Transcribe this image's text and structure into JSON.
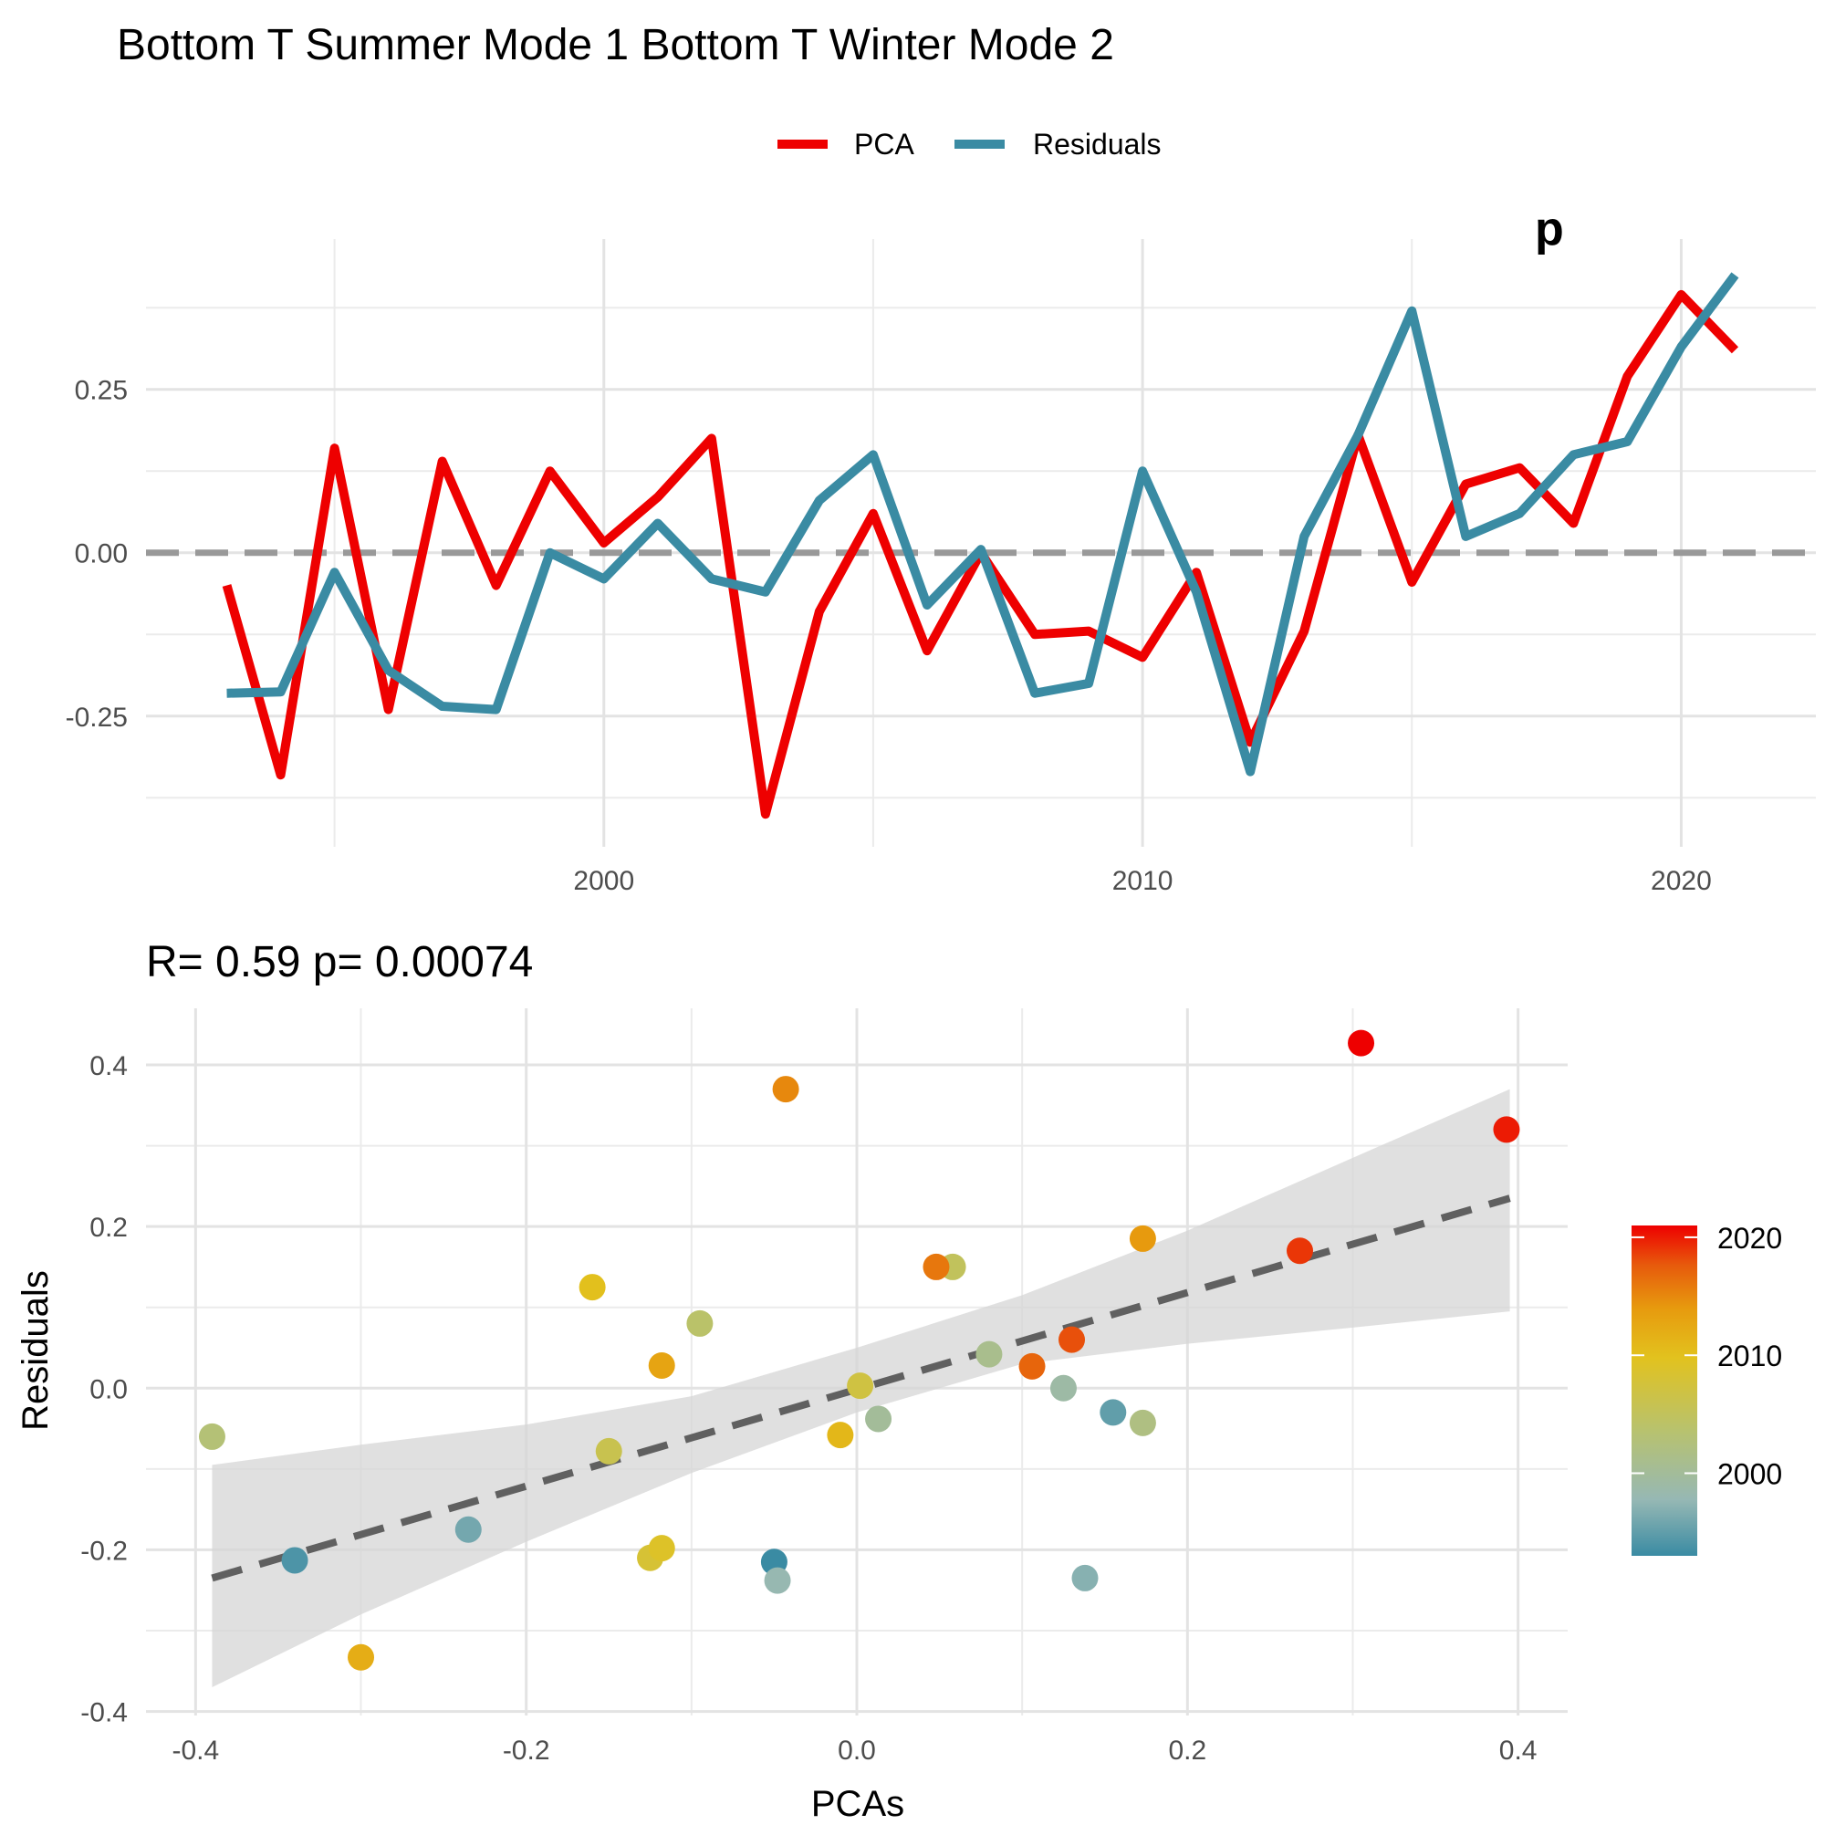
{
  "title": "Bottom T Summer Mode 1 Bottom T Winter Mode 2",
  "legend": {
    "items": [
      {
        "label": "PCA",
        "color": "#EE0000"
      },
      {
        "label": "Residuals",
        "color": "#3A8BA3"
      }
    ]
  },
  "chart_data": [
    {
      "type": "line",
      "xlabel": "",
      "ylabel": "",
      "xlim": [
        1991.5,
        2022.5
      ],
      "ylim": [
        -0.45,
        0.48
      ],
      "x_ticks": [
        2000,
        2010,
        2020
      ],
      "x_tick_labels": [
        "2000",
        "2010",
        "2020"
      ],
      "y_ticks": [
        -0.25,
        0.0,
        0.25
      ],
      "y_tick_labels": [
        "-0.25",
        "0.00",
        "0.25"
      ],
      "grid": true,
      "legend_position": "top",
      "reference_line": {
        "y": 0,
        "style": "dashed",
        "color": "#999999"
      },
      "annotation_fragment": "p",
      "x": [
        1993,
        1994,
        1995,
        1996,
        1997,
        1998,
        1999,
        2000,
        2001,
        2002,
        2003,
        2004,
        2005,
        2006,
        2007,
        2008,
        2009,
        2010,
        2011,
        2012,
        2013,
        2014,
        2015,
        2016,
        2017,
        2018,
        2019,
        2020,
        2021
      ],
      "series": [
        {
          "name": "PCA",
          "color": "#EE0000",
          "values": [
            -0.05,
            -0.34,
            0.16,
            -0.24,
            0.14,
            -0.05,
            0.125,
            0.015,
            0.085,
            0.175,
            -0.4,
            -0.09,
            0.06,
            -0.15,
            0.0,
            -0.125,
            -0.12,
            -0.16,
            -0.03,
            -0.29,
            -0.12,
            0.18,
            -0.045,
            0.105,
            0.13,
            0.045,
            0.27,
            0.395,
            0.31
          ]
        },
        {
          "name": "Residuals",
          "color": "#3A8BA3",
          "values": [
            -0.215,
            -0.213,
            -0.03,
            -0.18,
            -0.235,
            -0.24,
            0.0,
            -0.04,
            0.045,
            -0.04,
            -0.06,
            0.08,
            0.15,
            -0.08,
            0.005,
            -0.215,
            -0.2,
            0.125,
            -0.06,
            -0.335,
            0.025,
            0.18,
            0.37,
            0.025,
            0.06,
            0.15,
            0.17,
            0.315,
            0.425
          ]
        }
      ]
    },
    {
      "type": "scatter",
      "subtitle": "R= 0.59  p= 0.00074",
      "xlabel": "PCAs",
      "ylabel": "Residuals",
      "xlim": [
        -0.43,
        0.43
      ],
      "ylim": [
        -0.405,
        0.47
      ],
      "x_ticks": [
        -0.4,
        -0.2,
        0.0,
        0.2,
        0.4
      ],
      "x_tick_labels": [
        "-0.4",
        "-0.2",
        "0.0",
        "0.2",
        "0.4"
      ],
      "y_ticks": [
        -0.4,
        -0.2,
        0.0,
        0.2,
        0.4
      ],
      "y_tick_labels": [
        "-0.4",
        "-0.2",
        "0.0",
        "0.2",
        "0.4"
      ],
      "grid": true,
      "trend_line": {
        "x": [
          -0.39,
          0.395
        ],
        "y": [
          -0.235,
          0.235
        ],
        "style": "dashed",
        "color": "#606060"
      },
      "confidence_band": {
        "x": [
          -0.39,
          -0.3,
          -0.2,
          -0.1,
          0.0,
          0.1,
          0.2,
          0.3,
          0.395
        ],
        "lower": [
          -0.37,
          -0.28,
          -0.19,
          -0.105,
          -0.03,
          0.03,
          0.055,
          0.075,
          0.095
        ],
        "upper": [
          -0.095,
          -0.07,
          -0.045,
          -0.01,
          0.05,
          0.115,
          0.195,
          0.285,
          0.37
        ]
      },
      "colorbar": {
        "min": 1993,
        "max": 2021,
        "ticks": [
          2000,
          2010,
          2020
        ],
        "tick_labels": [
          "2000",
          "2010",
          "2020"
        ],
        "stops": [
          "#3A8BA3",
          "#96B8B4",
          "#B8C26E",
          "#E2C21E",
          "#E79A0E",
          "#E75A0C",
          "#EE0000"
        ]
      },
      "points": [
        {
          "x": -0.05,
          "y": -0.215,
          "year": 1993
        },
        {
          "x": -0.34,
          "y": -0.213,
          "year": 1994
        },
        {
          "x": 0.155,
          "y": -0.03,
          "year": 1995
        },
        {
          "x": -0.235,
          "y": -0.175,
          "year": 1996
        },
        {
          "x": 0.138,
          "y": -0.235,
          "year": 1997
        },
        {
          "x": -0.048,
          "y": -0.238,
          "year": 1998
        },
        {
          "x": 0.125,
          "y": 0.0,
          "year": 1999
        },
        {
          "x": 0.013,
          "y": -0.038,
          "year": 2000
        },
        {
          "x": 0.08,
          "y": 0.042,
          "year": 2001
        },
        {
          "x": 0.173,
          "y": -0.043,
          "year": 2002
        },
        {
          "x": -0.39,
          "y": -0.06,
          "year": 2003
        },
        {
          "x": -0.095,
          "y": 0.08,
          "year": 2004
        },
        {
          "x": 0.058,
          "y": 0.15,
          "year": 2005
        },
        {
          "x": -0.15,
          "y": -0.078,
          "year": 2006
        },
        {
          "x": 0.002,
          "y": 0.003,
          "year": 2007
        },
        {
          "x": -0.125,
          "y": -0.21,
          "year": 2008
        },
        {
          "x": -0.118,
          "y": -0.198,
          "year": 2009
        },
        {
          "x": -0.16,
          "y": 0.125,
          "year": 2010
        },
        {
          "x": -0.01,
          "y": -0.058,
          "year": 2011
        },
        {
          "x": -0.3,
          "y": -0.333,
          "year": 2012
        },
        {
          "x": -0.118,
          "y": 0.028,
          "year": 2013
        },
        {
          "x": 0.173,
          "y": 0.185,
          "year": 2014
        },
        {
          "x": -0.043,
          "y": 0.37,
          "year": 2015
        },
        {
          "x": 0.048,
          "y": 0.15,
          "year": 2016
        },
        {
          "x": 0.106,
          "y": 0.027,
          "year": 2017
        },
        {
          "x": 0.13,
          "y": 0.06,
          "year": 2018
        },
        {
          "x": 0.268,
          "y": 0.17,
          "year": 2019
        },
        {
          "x": 0.393,
          "y": 0.32,
          "year": 2020
        },
        {
          "x": 0.305,
          "y": 0.427,
          "year": 2021
        }
      ]
    }
  ]
}
